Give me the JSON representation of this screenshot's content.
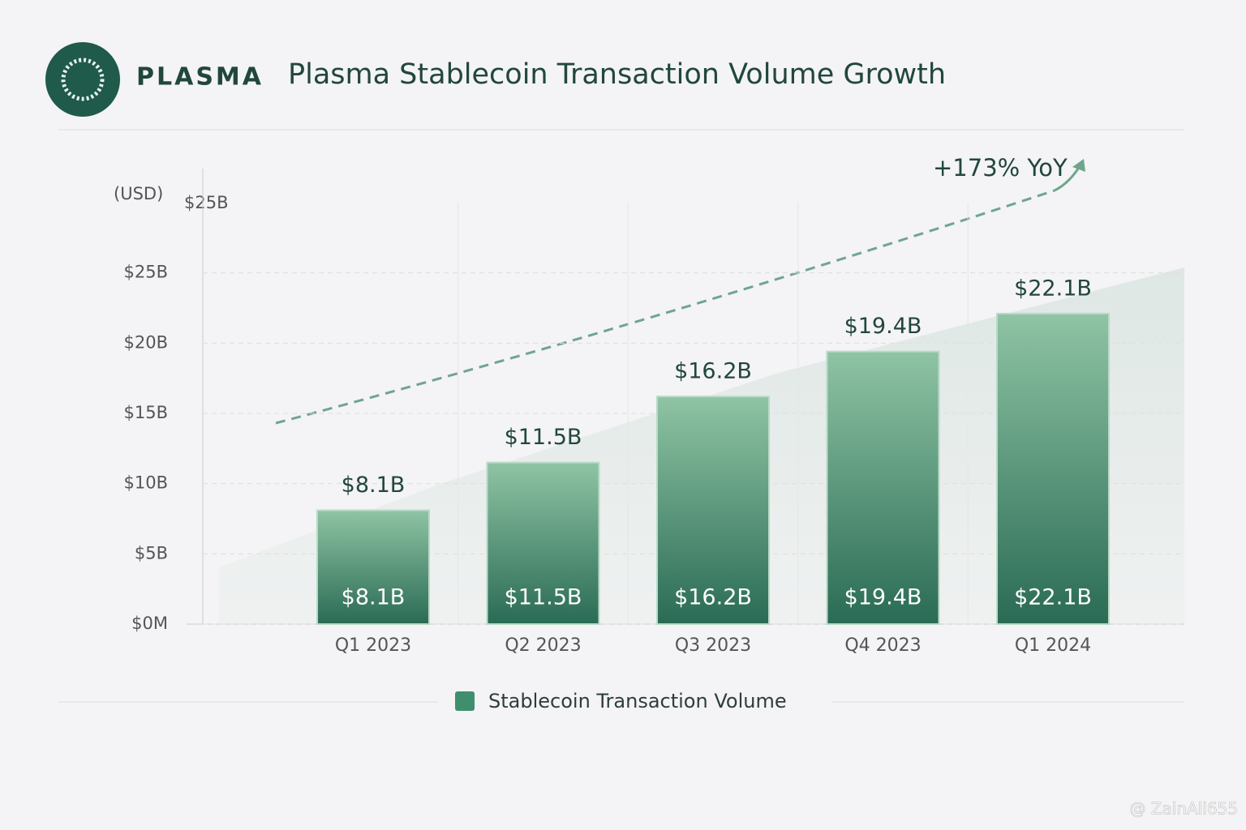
{
  "brand": "PLASMA",
  "chart_data": {
    "type": "bar",
    "title": "Plasma Stablecoin Transaction Volume Growth",
    "y_label": "(USD)",
    "categories": [
      "Q1 2023",
      "Q2 2023",
      "Q3 2023",
      "Q4 2023",
      "Q1 2024"
    ],
    "series": [
      {
        "name": "Stablecoin Transaction Volume",
        "color": "#3f8f6e",
        "values": [
          8.1,
          11.5,
          16.2,
          19.4,
          22.1
        ],
        "value_labels": [
          "$8.1B",
          "$11.5B",
          "$16.2B",
          "$19.4B",
          "$22.1B"
        ]
      }
    ],
    "ylim": [
      0,
      30
    ],
    "yticks": [
      {
        "value": 0,
        "label": "$0M"
      },
      {
        "value": 5,
        "label": "$5B"
      },
      {
        "value": 10,
        "label": "$10B"
      },
      {
        "value": 15,
        "label": "$15B"
      },
      {
        "value": 20,
        "label": "$20B"
      },
      {
        "value": 25,
        "label": "$25B"
      }
    ],
    "annotations": [
      "+173% YoY",
      "$25B"
    ],
    "grid": true,
    "legend": "bottom"
  },
  "watermark": "@ ZainAli655"
}
